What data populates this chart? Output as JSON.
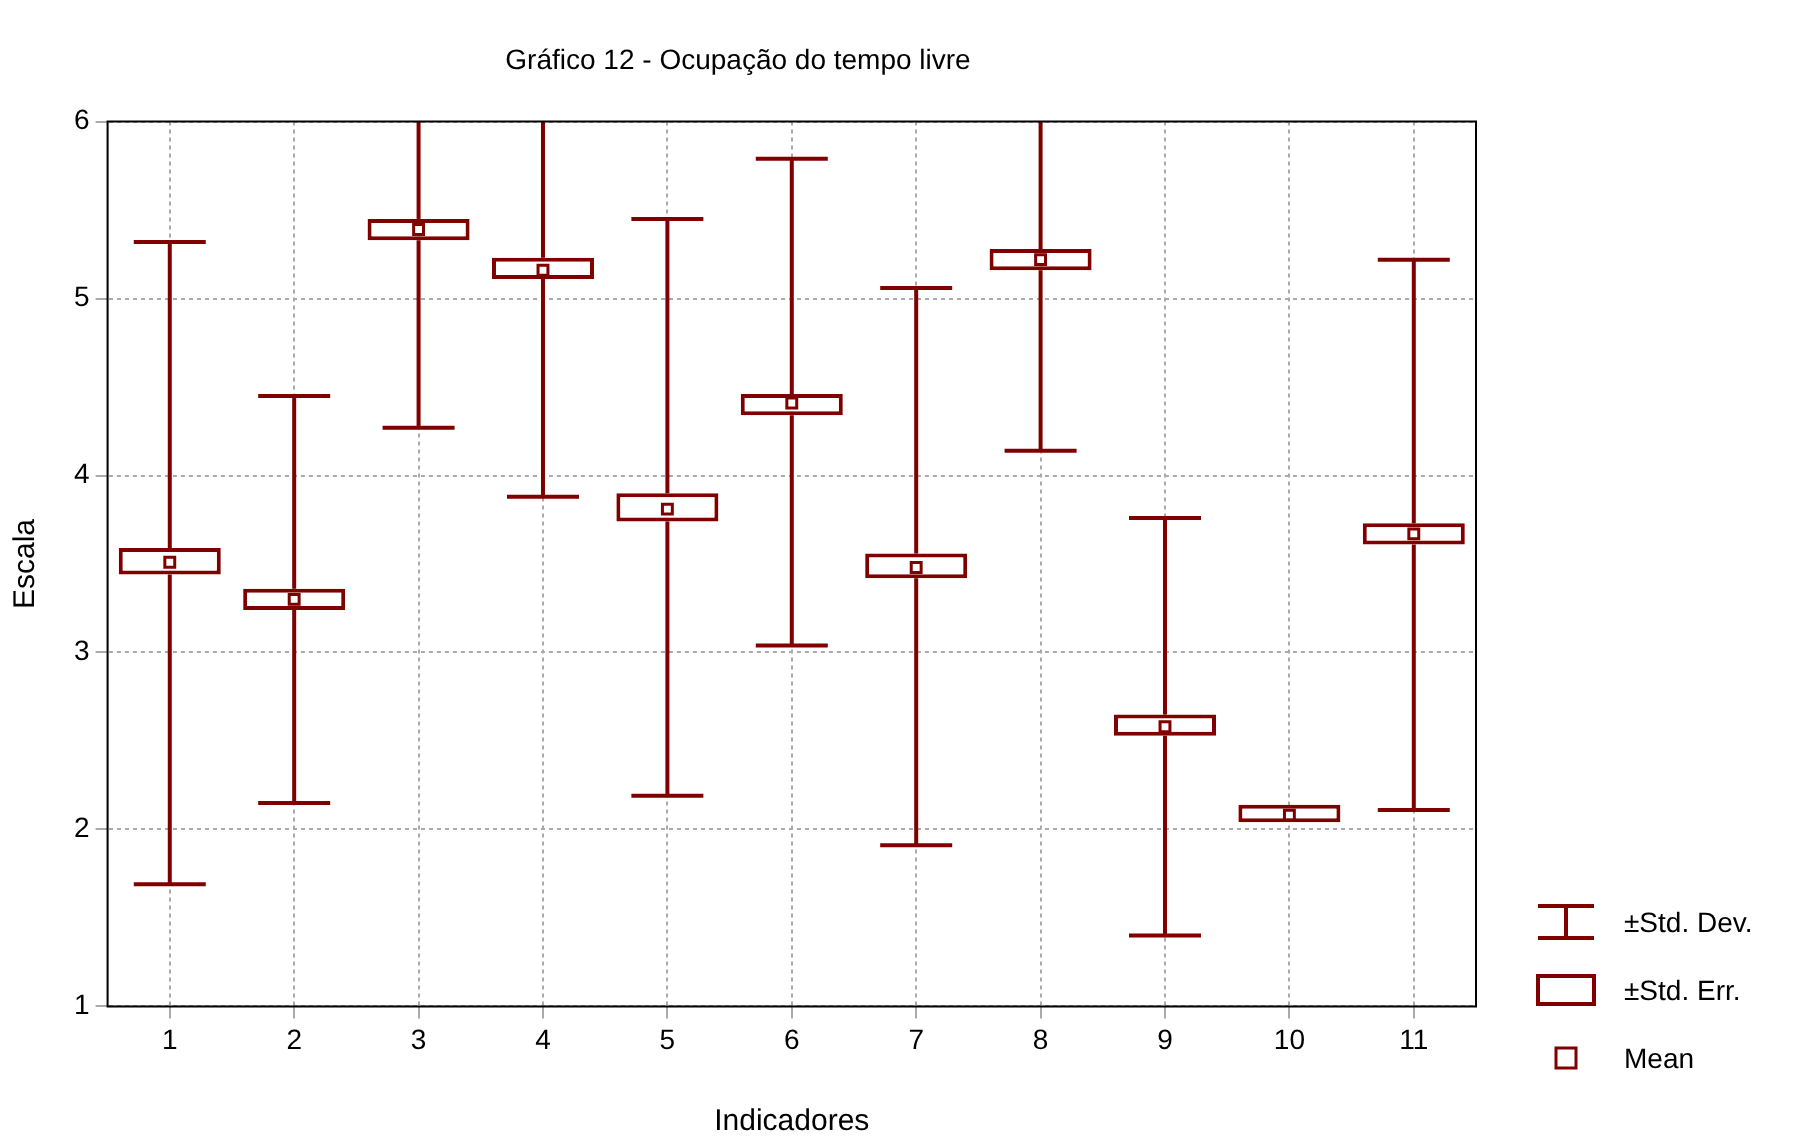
{
  "chart_data": {
    "type": "box",
    "title": "Gráfico 12 - Ocupação do tempo livre",
    "xlabel": "Indicadores",
    "ylabel": "Escala",
    "categories": [
      "1",
      "2",
      "3",
      "4",
      "5",
      "6",
      "7",
      "8",
      "9",
      "10",
      "11"
    ],
    "color": "#800000",
    "boxes": [
      {
        "low": 1.69,
        "q1": 3.44,
        "q3": 3.59,
        "high": 5.32,
        "mean": 3.51
      },
      {
        "low": 2.15,
        "q1": 3.24,
        "q3": 3.36,
        "high": 4.45,
        "mean": 3.3
      },
      {
        "low": 4.27,
        "q1": 5.33,
        "q3": 5.45,
        "high": 6,
        "mean": 5.39
      },
      {
        "low": 3.88,
        "q1": 5.11,
        "q3": 5.23,
        "high": 6,
        "mean": 5.16
      },
      {
        "low": 2.19,
        "q1": 3.74,
        "q3": 3.9,
        "high": 5.45,
        "mean": 3.81
      },
      {
        "low": 3.04,
        "q1": 4.34,
        "q3": 4.46,
        "high": 5.79,
        "mean": 4.41
      },
      {
        "low": 1.91,
        "q1": 3.42,
        "q3": 3.56,
        "high": 5.06,
        "mean": 3.48
      },
      {
        "low": 4.14,
        "q1": 5.16,
        "q3": 5.28,
        "high": 6,
        "mean": 5.22
      },
      {
        "low": 1.4,
        "q1": 2.53,
        "q3": 2.65,
        "high": 3.76,
        "mean": 2.58
      },
      {
        "low": 2.04,
        "q1": 2.04,
        "q3": 2.14,
        "high": 2.14,
        "mean": 2.08
      },
      {
        "low": 2.11,
        "q1": 3.61,
        "q3": 3.73,
        "high": 5.22,
        "mean": 3.67
      }
    ],
    "ylim": [
      1,
      6
    ],
    "yticks": [
      1,
      2,
      3,
      4,
      5,
      6
    ],
    "grid": true,
    "marker": "square",
    "annotations": [
      "±Std. Dev.",
      "±Std. Err.",
      "Mean"
    ]
  }
}
